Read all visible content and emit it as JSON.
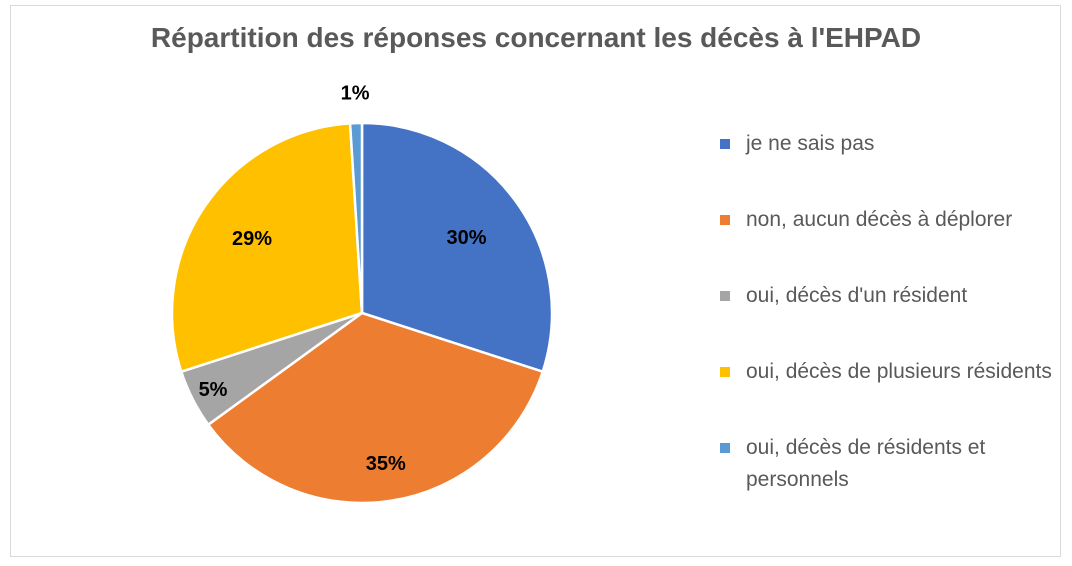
{
  "chart_data": {
    "type": "pie",
    "title": "Répartition des réponses concernant les décès à l'EHPAD",
    "categories": [
      "je ne sais pas",
      "non, aucun décès à déplorer",
      "oui, décès d'un résident",
      "oui, décès de plusieurs résidents",
      "oui, décès de résidents et personnels"
    ],
    "values": [
      30,
      35,
      5,
      29,
      1
    ],
    "labels": [
      "30%",
      "35%",
      "5%",
      "29%",
      "1%"
    ],
    "colors": [
      "#4472c4",
      "#ed7d31",
      "#a5a5a5",
      "#ffc000",
      "#5b9bd5"
    ],
    "legend_position": "right"
  }
}
